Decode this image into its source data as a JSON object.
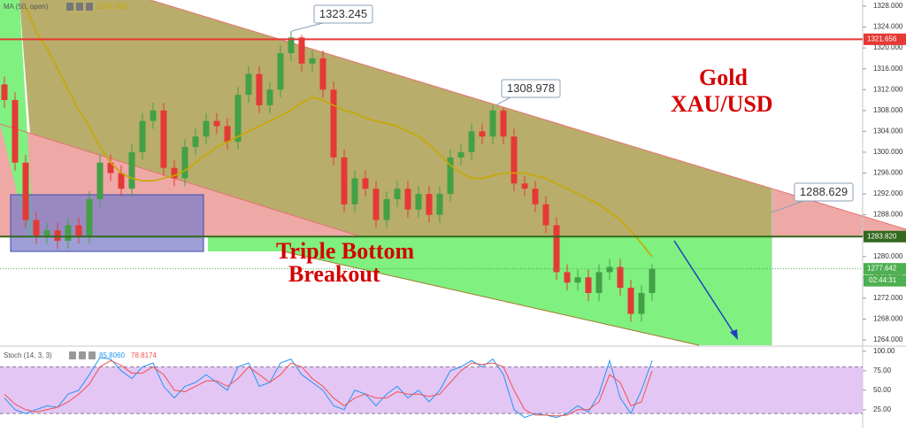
{
  "chart_data": [
    {
      "type": "candlestick",
      "title": "Gold",
      "subtitle": "XAU/USD",
      "annotation": [
        "Triple Bottom",
        "Breakout"
      ],
      "categories": [
        null,
        null,
        null,
        null,
        null,
        null,
        null,
        null,
        null,
        null,
        null,
        null,
        null,
        null,
        null,
        null,
        null,
        null,
        null,
        null,
        null,
        null,
        null,
        null,
        null,
        null,
        null,
        null,
        null,
        null,
        null,
        null,
        null,
        null,
        null,
        null,
        null,
        null,
        null,
        null,
        null,
        null,
        null,
        null,
        null,
        null,
        null,
        null,
        null,
        null,
        null,
        null,
        null,
        null,
        null,
        null,
        null,
        null,
        null,
        null,
        null,
        null
      ],
      "open": [
        1313,
        1310,
        1298,
        1287,
        1284,
        1285,
        1283,
        1286,
        1284,
        1291,
        1298,
        1296,
        1293,
        1300,
        1306,
        1308,
        1297,
        1295,
        1301,
        1303,
        1306,
        1305,
        1302,
        1311,
        1315,
        1309,
        1312,
        1319,
        1322,
        1317,
        1318,
        1312,
        1299,
        1290,
        1295,
        1293,
        1287,
        1291,
        1293,
        1289,
        1292,
        1288,
        1292,
        1299,
        1300,
        1304,
        1303,
        1308,
        1303,
        1294,
        1293,
        1290,
        1286,
        1277,
        1275,
        1276,
        1273,
        1277,
        1278,
        1274,
        1269,
        1273
      ],
      "high": [
        1314.5,
        1311.5,
        1299.5,
        1288.5,
        1286.5,
        1286.5,
        1287.5,
        1287.5,
        1292.5,
        1299.5,
        1299.5,
        1297.5,
        1301.5,
        1307.5,
        1309.5,
        1309.5,
        1298.5,
        1302.5,
        1304.5,
        1307.5,
        1307.5,
        1306.5,
        1312.5,
        1316.5,
        1316.5,
        1313.5,
        1320.5,
        1323.245,
        1322.5,
        1319.5,
        1319.5,
        1313.5,
        1300.5,
        1296.5,
        1296.5,
        1294.5,
        1292.5,
        1294.5,
        1294.5,
        1293.5,
        1293.5,
        1293.5,
        1300.5,
        1301.5,
        1305.5,
        1305.5,
        1308.978,
        1308.5,
        1304.5,
        1295.5,
        1294.5,
        1291.5,
        1287.5,
        1278.5,
        1277.5,
        1277.5,
        1278.5,
        1279.5,
        1279.5,
        1275.5,
        1274.5,
        1278.5
      ],
      "low": [
        1308.5,
        1296.5,
        1285.5,
        1282.5,
        1282.5,
        1281.5,
        1281.5,
        1282.5,
        1282.5,
        1289.5,
        1294.5,
        1291.5,
        1291.5,
        1298.5,
        1304.5,
        1295.5,
        1293.5,
        1293.5,
        1299.5,
        1301.5,
        1303.5,
        1300.5,
        1300.5,
        1309.5,
        1307.5,
        1307.5,
        1310.5,
        1317.5,
        1315.5,
        1315.5,
        1310.5,
        1297.5,
        1288.5,
        1288.5,
        1291.5,
        1285.5,
        1285.5,
        1289.5,
        1287.5,
        1287.5,
        1286.5,
        1286.5,
        1290.5,
        1297.5,
        1298.5,
        1301.5,
        1301.5,
        1301.5,
        1292.5,
        1291.5,
        1288.5,
        1284.5,
        1275.5,
        1273.5,
        1273.5,
        1271.5,
        1271.5,
        1275.5,
        1272.5,
        1267.5,
        1267.5,
        1271.5
      ],
      "close": [
        1310,
        1298,
        1287,
        1284,
        1285,
        1283,
        1286,
        1284,
        1291,
        1298,
        1296,
        1293,
        1300,
        1306,
        1308,
        1297,
        1295,
        1301,
        1303,
        1306,
        1305,
        1302,
        1311,
        1315,
        1309,
        1312,
        1319,
        1322,
        1317,
        1318,
        1312,
        1299,
        1290,
        1295,
        1293,
        1287,
        1291,
        1293,
        1289,
        1292,
        1288,
        1292,
        1299,
        1300,
        1304,
        1303,
        1308,
        1303,
        1294,
        1293,
        1290,
        1286,
        1277,
        1275,
        1276,
        1273,
        1277,
        1278,
        1274,
        1269,
        1273,
        1277.642
      ],
      "up_color": "#43a047",
      "down_color": "#e53935",
      "ma": {
        "name": "MA (50, open)",
        "value": 1278.7601,
        "color": "#c9a800",
        "values": [
          null,
          null,
          1328,
          1323,
          1320,
          1316,
          1312,
          1308,
          1305,
          1301,
          1298,
          1296,
          1295,
          1294.5,
          1294.5,
          1295,
          1295.5,
          1296.5,
          1298,
          1299.5,
          1301,
          1302,
          1303,
          1304,
          1305,
          1306,
          1307,
          1308,
          1309.5,
          1310.5,
          1310,
          1309,
          1308,
          1307.5,
          1306.5,
          1306,
          1305.5,
          1305,
          1304,
          1303,
          1301.5,
          1299.5,
          1297.5,
          1296,
          1295,
          1295,
          1295.5,
          1296,
          1296,
          1296,
          1295.5,
          1295,
          1294,
          1293,
          1292,
          1291,
          1290,
          1288.5,
          1287,
          1285,
          1282.5,
          1280
        ]
      },
      "ylim": [
        1262.98,
        1329.19
      ],
      "yticks": [
        {
          "value": 1264,
          "label": "1264.000"
        },
        {
          "value": 1268,
          "label": "1268.000"
        },
        {
          "value": 1272,
          "label": "1272.000"
        },
        {
          "value": 1276,
          "label": "1276.000"
        },
        {
          "value": 1280,
          "label": "1280.000"
        },
        {
          "value": 1284,
          "label": "1284.000"
        },
        {
          "value": 1288,
          "label": "1288.000"
        },
        {
          "value": 1292,
          "label": "1292.000"
        },
        {
          "value": 1296,
          "label": "1296.000"
        },
        {
          "value": 1300,
          "label": "1300.000"
        },
        {
          "value": 1304,
          "label": "1304.000"
        },
        {
          "value": 1308,
          "label": "1308.000"
        },
        {
          "value": 1312,
          "label": "1312.000"
        },
        {
          "value": 1316,
          "label": "1316.000"
        },
        {
          "value": 1320,
          "label": "1320.000"
        },
        {
          "value": 1324,
          "label": "1324.000"
        },
        {
          "value": 1328,
          "label": "1328.000"
        }
      ],
      "grid": false,
      "levels": [
        {
          "price": 1321.656,
          "color": "#e53935",
          "line_style": "solid"
        },
        {
          "price": {
            "value": 1283.82,
            "label": "1283.820"
          },
          "color": "#33691e",
          "line_style": "solid"
        },
        {
          "price": 1277.642,
          "color": "#4caf50",
          "line_style": "dotted",
          "countdown": "02:44:31"
        }
      ],
      "callouts": [
        1323.245,
        1308.978,
        1288.629
      ]
    },
    {
      "type": "line",
      "title": "Stoch (14, 3, 3)",
      "ylim": [
        2,
        105.5
      ],
      "yticks": [
        {
          "value": 25,
          "label": "25.00"
        },
        {
          "value": 50,
          "label": "50.00"
        },
        {
          "value": 75,
          "label": "75.00"
        },
        {
          "value": 100,
          "label": "100.00"
        }
      ],
      "band": [
        20,
        80
      ],
      "series": [
        {
          "color": "#2196f3",
          "last": {
            "value": 85.806,
            "label": "85.8060"
          },
          "values": [
            40,
            25,
            20,
            25,
            30,
            28,
            45,
            50,
            70,
            92,
            90,
            75,
            65,
            80,
            85,
            55,
            40,
            55,
            60,
            70,
            60,
            50,
            80,
            85,
            55,
            60,
            85,
            90,
            70,
            60,
            50,
            30,
            25,
            50,
            45,
            30,
            45,
            55,
            40,
            50,
            35,
            50,
            75,
            80,
            88,
            80,
            90,
            70,
            25,
            15,
            20,
            18,
            15,
            20,
            30,
            22,
            45,
            88,
            40,
            20,
            50,
            88
          ]
        },
        {
          "color": "#ef5350",
          "last": 78.8174,
          "values": [
            45,
            32,
            25,
            22,
            25,
            28,
            35,
            45,
            58,
            80,
            88,
            82,
            72,
            72,
            80,
            70,
            50,
            48,
            55,
            62,
            62,
            55,
            65,
            80,
            70,
            60,
            70,
            85,
            80,
            65,
            55,
            40,
            30,
            40,
            45,
            40,
            40,
            48,
            45,
            45,
            42,
            45,
            60,
            75,
            85,
            83,
            85,
            80,
            50,
            25,
            18,
            18,
            17,
            18,
            25,
            25,
            35,
            70,
            60,
            30,
            35,
            75
          ]
        }
      ]
    }
  ]
}
